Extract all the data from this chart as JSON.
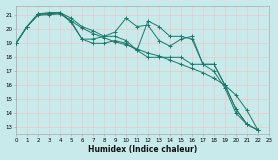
{
  "xlabel": "Humidex (Indice chaleur)",
  "background_color": "#c8eaea",
  "grid_color": "#e8c8c8",
  "line_color": "#1a7a6a",
  "xlim": [
    0,
    23
  ],
  "ylim": [
    12.5,
    21.7
  ],
  "yticks": [
    13,
    14,
    15,
    16,
    17,
    18,
    19,
    20,
    21
  ],
  "xticks": [
    0,
    1,
    2,
    3,
    4,
    5,
    6,
    7,
    8,
    9,
    10,
    11,
    12,
    13,
    14,
    15,
    16,
    17,
    18,
    19,
    20,
    21,
    22,
    23
  ],
  "lines": [
    {
      "x": [
        0,
        1,
        2,
        3,
        4,
        5,
        6,
        7,
        8,
        9,
        10,
        11,
        12,
        13,
        14,
        15,
        16,
        17,
        18,
        19,
        20,
        21,
        22
      ],
      "y": [
        19.0,
        20.2,
        21.0,
        21.05,
        21.1,
        20.6,
        20.1,
        19.7,
        19.4,
        19.1,
        18.9,
        18.6,
        18.3,
        18.1,
        17.8,
        17.5,
        17.2,
        16.9,
        16.5,
        16.0,
        15.3,
        14.2,
        12.8
      ]
    },
    {
      "x": [
        0,
        1,
        2,
        3,
        4,
        5,
        6,
        7,
        8,
        9,
        10,
        11,
        12,
        13,
        14,
        15,
        16,
        17,
        18,
        19,
        20,
        21,
        22
      ],
      "y": [
        19.0,
        20.2,
        21.1,
        21.1,
        21.2,
        20.6,
        19.3,
        19.0,
        19.0,
        19.2,
        19.0,
        18.5,
        18.0,
        18.0,
        18.0,
        18.0,
        17.5,
        17.5,
        17.0,
        15.8,
        14.0,
        13.2,
        12.8
      ]
    },
    {
      "x": [
        0,
        1,
        2,
        3,
        4,
        5,
        6,
        7,
        8,
        9,
        10,
        11,
        12,
        13,
        14,
        15,
        16,
        17,
        18,
        19,
        20,
        21,
        22
      ],
      "y": [
        19.0,
        20.2,
        21.1,
        21.1,
        21.2,
        20.5,
        19.3,
        19.3,
        19.5,
        19.5,
        19.2,
        18.5,
        20.6,
        20.2,
        19.5,
        19.5,
        19.3,
        17.5,
        17.5,
        16.0,
        14.3,
        13.2,
        12.8
      ]
    },
    {
      "x": [
        0,
        1,
        2,
        3,
        4,
        5,
        6,
        7,
        8,
        9,
        10,
        11,
        12,
        13,
        14,
        15,
        16,
        17,
        18,
        19,
        20,
        21,
        22
      ],
      "y": [
        19.0,
        20.2,
        21.1,
        21.2,
        21.2,
        20.8,
        20.2,
        19.9,
        19.5,
        19.8,
        20.8,
        20.2,
        20.3,
        19.2,
        18.8,
        19.3,
        19.5,
        17.5,
        17.5,
        16.0,
        14.3,
        13.2,
        12.8
      ]
    }
  ]
}
